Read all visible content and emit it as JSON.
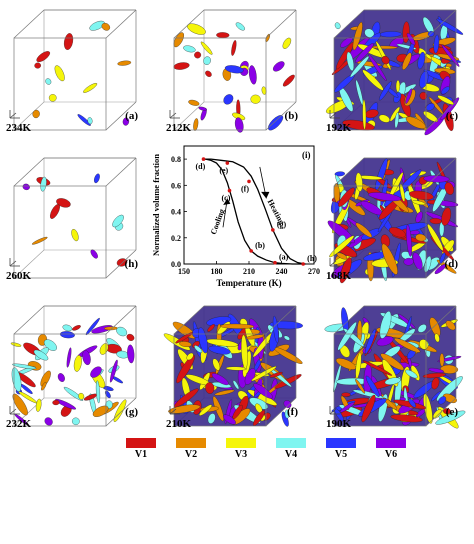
{
  "panels": [
    {
      "temp": "234K",
      "tag": "(a)",
      "density": 0.07,
      "seed": 3
    },
    {
      "temp": "212K",
      "tag": "(b)",
      "density": 0.22,
      "seed": 7
    },
    {
      "temp": "192K",
      "tag": "(c)",
      "density": 0.82,
      "seed": 11
    },
    {
      "temp": "260K",
      "tag": "(h)",
      "density": 0.05,
      "seed": 13
    },
    {
      "temp": "168K",
      "tag": "(d)",
      "density": 1.0,
      "seed": 17
    },
    {
      "temp": "232K",
      "tag": "(g)",
      "density": 0.45,
      "seed": 19
    },
    {
      "temp": "210K",
      "tag": "(f)",
      "density": 0.9,
      "seed": 23
    },
    {
      "temp": "190K",
      "tag": "(e)",
      "density": 0.95,
      "seed": 29
    }
  ],
  "variant_colors": [
    "#d41414",
    "#e68a00",
    "#f5f50a",
    "#7ff5f0",
    "#2a36ff",
    "#8a00e6"
  ],
  "legend": [
    "V1",
    "V2",
    "V3",
    "V4",
    "V5",
    "V6"
  ],
  "chart_data": {
    "type": "line",
    "xlabel": "Temperature (K)",
    "ylabel": "Normalized volume fraction",
    "panel_tag": "(i)",
    "xlim": [
      150,
      270
    ],
    "ylim": [
      0.0,
      0.9
    ],
    "xticks": [
      150,
      180,
      210,
      240,
      270
    ],
    "yticks": [
      0.0,
      0.2,
      0.4,
      0.6,
      0.8
    ],
    "series": [
      {
        "name": "Cooling",
        "x": [
          262,
          250,
          240,
          234,
          226,
          218,
          212,
          206,
          200,
          195,
          190,
          185,
          180,
          175,
          170,
          168
        ],
        "y": [
          0.0,
          0.0,
          0.005,
          0.01,
          0.03,
          0.06,
          0.1,
          0.18,
          0.32,
          0.48,
          0.62,
          0.72,
          0.77,
          0.79,
          0.8,
          0.8
        ]
      },
      {
        "name": "Heating",
        "x": [
          168,
          175,
          185,
          195,
          205,
          212,
          218,
          225,
          232,
          240,
          248,
          255,
          262
        ],
        "y": [
          0.8,
          0.8,
          0.79,
          0.78,
          0.74,
          0.67,
          0.57,
          0.42,
          0.26,
          0.12,
          0.04,
          0.01,
          0.0
        ]
      }
    ],
    "point_labels": [
      {
        "label": "(a)",
        "x": 234,
        "y": 0.01
      },
      {
        "label": "(b)",
        "x": 212,
        "y": 0.1
      },
      {
        "label": "(c)",
        "x": 192,
        "y": 0.56
      },
      {
        "label": "(d)",
        "x": 168,
        "y": 0.8
      },
      {
        "label": "(e)",
        "x": 190,
        "y": 0.77
      },
      {
        "label": "(f)",
        "x": 210,
        "y": 0.63
      },
      {
        "label": "(g)",
        "x": 232,
        "y": 0.26
      },
      {
        "label": "(h)",
        "x": 260,
        "y": 0.0
      }
    ],
    "annotations": [
      "Cooling",
      "Heating"
    ]
  }
}
